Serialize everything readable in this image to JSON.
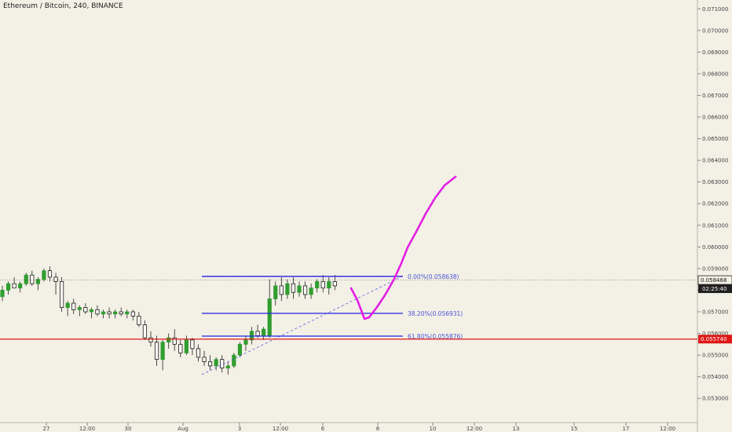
{
  "title": "Ethereum / Bitcoin, 240, BINANCE",
  "chart_data": {
    "type": "candlestick",
    "symbol": "Ethereum / Bitcoin",
    "interval": "240",
    "exchange": "BINANCE",
    "ylim": [
      0.0525,
      0.0713
    ],
    "y_ticks": [
      "0.053000",
      "0.054000",
      "0.055000",
      "0.056000",
      "0.057000",
      "0.058000",
      "0.059000",
      "0.060000",
      "0.061000",
      "0.062000",
      "0.063000",
      "0.064000",
      "0.065000",
      "0.066000",
      "0.067000",
      "0.068000",
      "0.069000",
      "0.070000",
      "0.071000"
    ],
    "x_ticks": [
      "27",
      "12:00",
      "30",
      "Aug",
      "3",
      "12:00",
      "6",
      "8",
      "10",
      "12:00",
      "13",
      "15",
      "17",
      "12:00"
    ],
    "current_price": "0.058468",
    "countdown": "02:25:40",
    "horizontal_line_price": "0.055740",
    "fib_levels": [
      {
        "label": "0.00%(0.058638)",
        "value": 0.058638
      },
      {
        "label": "38.20%(0.056931)",
        "value": 0.056931
      },
      {
        "label": "61.80%(0.055876)",
        "value": 0.055876
      }
    ],
    "candles": [
      [
        0.0577,
        0.0582,
        0.0575,
        0.058
      ],
      [
        0.058,
        0.0584,
        0.0578,
        0.0583
      ],
      [
        0.0583,
        0.0586,
        0.0581,
        0.0581
      ],
      [
        0.0581,
        0.0584,
        0.0579,
        0.0583
      ],
      [
        0.0583,
        0.0588,
        0.0582,
        0.0587
      ],
      [
        0.0587,
        0.0589,
        0.0582,
        0.0583
      ],
      [
        0.0583,
        0.0586,
        0.058,
        0.0585
      ],
      [
        0.0585,
        0.059,
        0.0584,
        0.0589
      ],
      [
        0.0589,
        0.0591,
        0.0584,
        0.0586
      ],
      [
        0.0586,
        0.0588,
        0.0578,
        0.0584
      ],
      [
        0.0584,
        0.0586,
        0.057,
        0.0572
      ],
      [
        0.0572,
        0.0575,
        0.0568,
        0.0574
      ],
      [
        0.0574,
        0.0576,
        0.0569,
        0.0571
      ],
      [
        0.0571,
        0.0573,
        0.0568,
        0.0572
      ],
      [
        0.0572,
        0.0574,
        0.0569,
        0.057
      ],
      [
        0.057,
        0.0572,
        0.0567,
        0.0571
      ],
      [
        0.0571,
        0.0573,
        0.0568,
        0.0569
      ],
      [
        0.0569,
        0.0571,
        0.0567,
        0.057
      ],
      [
        0.057,
        0.0572,
        0.0567,
        0.0569
      ],
      [
        0.0569,
        0.0571,
        0.0567,
        0.057
      ],
      [
        0.057,
        0.0572,
        0.0568,
        0.0569
      ],
      [
        0.0569,
        0.0571,
        0.0567,
        0.057
      ],
      [
        0.057,
        0.0571,
        0.0566,
        0.0568
      ],
      [
        0.0568,
        0.057,
        0.0563,
        0.0564
      ],
      [
        0.0564,
        0.0566,
        0.0557,
        0.0558
      ],
      [
        0.0558,
        0.0561,
        0.0554,
        0.0556
      ],
      [
        0.0556,
        0.0559,
        0.0545,
        0.0548
      ],
      [
        0.0548,
        0.0557,
        0.0543,
        0.0556
      ],
      [
        0.0556,
        0.056,
        0.0553,
        0.0558
      ],
      [
        0.0558,
        0.0562,
        0.0552,
        0.0555
      ],
      [
        0.0555,
        0.0557,
        0.0549,
        0.0551
      ],
      [
        0.0551,
        0.0559,
        0.055,
        0.0557
      ],
      [
        0.0557,
        0.0558,
        0.055,
        0.0553
      ],
      [
        0.0553,
        0.0555,
        0.0547,
        0.0549
      ],
      [
        0.0549,
        0.0552,
        0.0545,
        0.0547
      ],
      [
        0.0547,
        0.055,
        0.0543,
        0.0545
      ],
      [
        0.0545,
        0.0549,
        0.0543,
        0.0548
      ],
      [
        0.0548,
        0.055,
        0.0542,
        0.0544
      ],
      [
        0.0544,
        0.0547,
        0.0541,
        0.0545
      ],
      [
        0.0545,
        0.0551,
        0.0544,
        0.055
      ],
      [
        0.055,
        0.0556,
        0.0549,
        0.0555
      ],
      [
        0.0555,
        0.0559,
        0.0552,
        0.0557
      ],
      [
        0.0557,
        0.0563,
        0.0555,
        0.0561
      ],
      [
        0.0561,
        0.0564,
        0.0558,
        0.0559
      ],
      [
        0.0559,
        0.0563,
        0.0557,
        0.0562
      ],
      [
        0.0559,
        0.0585,
        0.0558,
        0.0576
      ],
      [
        0.0576,
        0.0584,
        0.0573,
        0.0582
      ],
      [
        0.0582,
        0.0586,
        0.0575,
        0.0578
      ],
      [
        0.0578,
        0.0585,
        0.0576,
        0.0583
      ],
      [
        0.0583,
        0.0586,
        0.0576,
        0.0579
      ],
      [
        0.0579,
        0.0584,
        0.0577,
        0.0582
      ],
      [
        0.0582,
        0.0584,
        0.0576,
        0.0578
      ],
      [
        0.0578,
        0.0583,
        0.0576,
        0.0581
      ],
      [
        0.0581,
        0.0585,
        0.0579,
        0.0584
      ],
      [
        0.0584,
        0.0587,
        0.0579,
        0.0581
      ],
      [
        0.0581,
        0.0586,
        0.0578,
        0.0584
      ],
      [
        0.0584,
        0.0587,
        0.058,
        0.0582
      ]
    ],
    "colors": {
      "background": "#f3f0e6",
      "bull_candle": "#2f9e2f",
      "bear_candle": "#1a1a1a",
      "fib_line": "#3232e0",
      "fib_text": "#4a55d8",
      "support_line": "#e01818",
      "projection": "#e31ee3"
    }
  }
}
